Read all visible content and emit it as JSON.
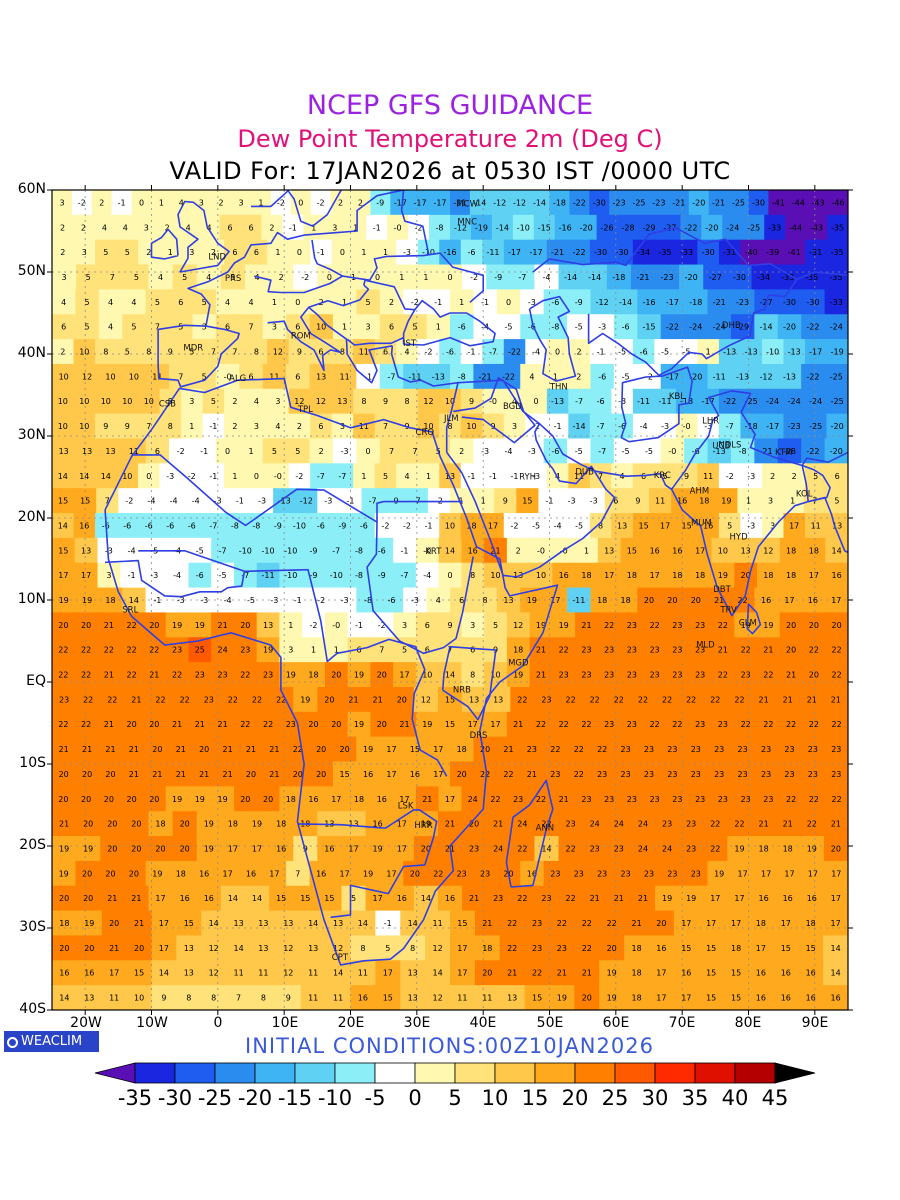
{
  "header": {
    "title": "NCEP GFS GUIDANCE",
    "subtitle": "Dew Point Temperature 2m (Deg C)",
    "valid": "VALID For: 17JAN2026 at 0530 IST /0000 UTC"
  },
  "axes": {
    "lat_labels": [
      "60N",
      "50N",
      "40N",
      "30N",
      "20N",
      "10N",
      "EQ",
      "10S",
      "20S",
      "30S",
      "40S"
    ],
    "lon_labels": [
      "20W",
      "10W",
      "0",
      "10E",
      "20E",
      "30E",
      "40E",
      "50E",
      "60E",
      "70E",
      "80E",
      "90E"
    ]
  },
  "footer": {
    "logo_text": "WEACLIM",
    "initial_conditions": "INITIAL CONDITIONS:00Z10JAN2026"
  },
  "colorbar": {
    "labels": [
      "-35",
      "-30",
      "-25",
      "-20",
      "-15",
      "-10",
      "-5",
      "0",
      "5",
      "10",
      "15",
      "20",
      "25",
      "30",
      "35",
      "40",
      "45"
    ],
    "colors": [
      "#5a0fb4",
      "#1a26e0",
      "#1e5df0",
      "#2b8cf0",
      "#3fb4f4",
      "#5fd2f4",
      "#8ceff8",
      "#ffffff",
      "#fff8b0",
      "#ffe27a",
      "#ffc84a",
      "#ffaa1e",
      "#ff8000",
      "#ff5a00",
      "#ff2a00",
      "#e01000",
      "#b40000",
      "#8c0000",
      "#000000"
    ]
  },
  "stations": [
    "LND",
    "PRS",
    "MNC",
    "MDR",
    "ROM",
    "IST",
    "ALG",
    "CSB",
    "TPL",
    "KRT",
    "CRO",
    "JLM",
    "BGD",
    "THN",
    "DHB",
    "KBL",
    "LHR",
    "NDLS",
    "KTM",
    "UCB",
    "RYH",
    "DUB",
    "KRC",
    "AHM",
    "KOL",
    "MUM",
    "HYD",
    "DBT",
    "TRV",
    "CLM",
    "MLD",
    "SRL",
    "MGD",
    "NRB",
    "DRS",
    "ANN",
    "HRR",
    "LSK",
    "CPT",
    "MCW"
  ],
  "map_data": {
    "region": "Europe, Africa, Middle East and South Asia",
    "lat_range": [
      -40,
      60
    ],
    "lon_range": [
      -25,
      95
    ],
    "variable": "Dew Point Temperature 2m (Deg C)",
    "station_grid_rows": [
      [
        "3",
        "-2",
        "2",
        "-1",
        "0",
        "1",
        "4",
        "3",
        "2",
        "3",
        "1",
        "-2",
        "0",
        "-2",
        "2",
        "2",
        "-9",
        "-17",
        "-17",
        "-17",
        "-21",
        "-14",
        "-12",
        "-12",
        "-14",
        "-18",
        "-22",
        "-30",
        "-23",
        "-25",
        "-23",
        "-21",
        "-20",
        "-21",
        "-25",
        "-30",
        "-41",
        "-44",
        "-43",
        "-46"
      ],
      [
        "2",
        "2",
        "4",
        "4",
        "3",
        "2",
        "4",
        "4",
        "6",
        "6",
        "2",
        "-1",
        "1",
        "3",
        "1",
        "-1",
        "-0",
        "-2",
        "-8",
        "-12",
        "-19",
        "-14",
        "-10",
        "-15",
        "-16",
        "-20",
        "-26",
        "-28",
        "-29",
        "-27",
        "-22",
        "-20",
        "-24",
        "-25",
        "-33",
        "-44",
        "-43",
        "-35"
      ],
      [
        "2",
        "3",
        "5",
        "5",
        "2",
        "1",
        "3",
        "2",
        "6",
        "6",
        "1",
        "0",
        "-1",
        "0",
        "1",
        "1",
        "-3",
        "-10",
        "-16",
        "-6",
        "-11",
        "-17",
        "-17",
        "-21",
        "-22",
        "-30",
        "-30",
        "-34",
        "-35",
        "-33",
        "-30",
        "-31",
        "-40",
        "-39",
        "-41",
        "-31",
        "-35"
      ],
      [
        "3",
        "5",
        "7",
        "5",
        "4",
        "5",
        "4",
        "5",
        "4",
        "2",
        "-2",
        "0",
        "1",
        "0",
        "1",
        "1",
        "0",
        "-2",
        "-9",
        "-7",
        "-4",
        "-14",
        "-14",
        "-18",
        "-21",
        "-23",
        "-20",
        "-27",
        "-30",
        "-34",
        "-33",
        "-35",
        "-35"
      ],
      [
        "4",
        "5",
        "4",
        "4",
        "5",
        "6",
        "5",
        "4",
        "4",
        "1",
        "0",
        "2",
        "1",
        "5",
        "2",
        "-2",
        "-1",
        "1",
        "-1",
        "0",
        "-3",
        "-6",
        "-9",
        "-12",
        "-14",
        "-16",
        "-17",
        "-18",
        "-21",
        "-23",
        "-27",
        "-30",
        "-30",
        "-33"
      ],
      [
        "6",
        "5",
        "4",
        "5",
        "7",
        "5",
        "3",
        "6",
        "7",
        "3",
        "6",
        "10",
        "1",
        "3",
        "6",
        "5",
        "1",
        "-6",
        "-4",
        "-5",
        "-6",
        "-8",
        "-5",
        "-3",
        "-6",
        "-15",
        "-22",
        "-24",
        "-24",
        "-29",
        "-14",
        "-20",
        "-22",
        "-24"
      ],
      [
        "2",
        "10",
        "8",
        "5",
        "8",
        "9",
        "5",
        "7",
        "7",
        "8",
        "12",
        "9",
        "6",
        "8",
        "11",
        "6",
        "4",
        "-2",
        "-6",
        "-1",
        "-7",
        "-22",
        "-4",
        "0",
        "2",
        "-1",
        "-5",
        "-6",
        "-5",
        "-5",
        "1",
        "-13",
        "-13",
        "-10",
        "-13",
        "-17",
        "-19"
      ],
      [
        "10",
        "12",
        "10",
        "10",
        "11",
        "7",
        "5",
        "-0",
        "6",
        "11",
        "6",
        "13",
        "11",
        "-1",
        "-7",
        "-11",
        "-13",
        "-8",
        "-21",
        "-22",
        "4",
        "1",
        "2",
        "-6",
        "-5",
        "-2",
        "-17",
        "-20",
        "-11",
        "-13",
        "-12",
        "-13",
        "-22",
        "-25"
      ],
      [
        "10",
        "10",
        "10",
        "10",
        "10",
        "8",
        "3",
        "5",
        "2",
        "4",
        "3",
        "12",
        "12",
        "13",
        "8",
        "9",
        "8",
        "12",
        "10",
        "9",
        "-0",
        "4",
        "0",
        "-13",
        "-7",
        "-6",
        "-3",
        "-11",
        "-11",
        "-18",
        "-17",
        "-22",
        "-25",
        "-24",
        "-24",
        "-24",
        "-25"
      ],
      [
        "10",
        "10",
        "9",
        "9",
        "7",
        "8",
        "1",
        "-1",
        "2",
        "3",
        "4",
        "2",
        "6",
        "3",
        "11",
        "7",
        "9",
        "10",
        "8",
        "10",
        "9",
        "3",
        "-2",
        "-1",
        "-14",
        "-7",
        "-6",
        "-4",
        "-3",
        "-0",
        "-3",
        "-7",
        "-18",
        "-17",
        "-23",
        "-25",
        "-20"
      ],
      [
        "13",
        "13",
        "13",
        "11",
        "6",
        "-2",
        "-1",
        "0",
        "1",
        "5",
        "5",
        "2",
        "-3",
        "0",
        "7",
        "7",
        "5",
        "2",
        "-3",
        "-4",
        "-3",
        "-6",
        "-5",
        "-7",
        "-5",
        "-5",
        "-0",
        "-6",
        "-13",
        "-8",
        "-21",
        "-28",
        "-22",
        "-20"
      ],
      [
        "14",
        "14",
        "14",
        "10",
        "0",
        "-3",
        "-2",
        "-1",
        "1",
        "0",
        "-0",
        "-2",
        "-7",
        "-7",
        "1",
        "5",
        "4",
        "1",
        "13",
        "-1",
        "-1",
        "-1",
        "-3",
        "4",
        "11",
        "7",
        "4",
        "6",
        "5",
        "9",
        "11",
        "-2",
        "-3",
        "2",
        "2",
        "5",
        "6"
      ],
      [
        "15",
        "15",
        "7",
        "-2",
        "-4",
        "-4",
        "-4",
        "-3",
        "-1",
        "-3",
        "-13",
        "-12",
        "-3",
        "-1",
        "-7",
        "-9",
        "-7",
        "-2",
        "1",
        "1",
        "9",
        "15",
        "-1",
        "-3",
        "-3",
        "6",
        "9",
        "11",
        "16",
        "18",
        "19",
        "1",
        "3",
        "1",
        "7",
        "5"
      ],
      [
        "14",
        "16",
        "-6",
        "-6",
        "-6",
        "-6",
        "-6",
        "-7",
        "-8",
        "-8",
        "-9",
        "-10",
        "-6",
        "-9",
        "-6",
        "-2",
        "-2",
        "-1",
        "10",
        "18",
        "17",
        "-2",
        "-5",
        "-4",
        "-5",
        "8",
        "13",
        "15",
        "17",
        "15",
        "16",
        "5",
        "-3",
        "3",
        "17",
        "11",
        "13"
      ],
      [
        "15",
        "13",
        "-3",
        "-4",
        "-5",
        "-4",
        "-5",
        "-7",
        "-10",
        "-10",
        "-10",
        "-9",
        "-7",
        "-8",
        "-6",
        "-1",
        "-0",
        "14",
        "16",
        "21",
        "2",
        "-0",
        "-0",
        "1",
        "13",
        "15",
        "16",
        "16",
        "17",
        "10",
        "13",
        "12",
        "18",
        "18",
        "14"
      ],
      [
        "17",
        "17",
        "3",
        "-1",
        "-3",
        "-4",
        "-6",
        "-5",
        "-7",
        "-11",
        "-10",
        "-9",
        "-10",
        "-8",
        "-9",
        "-7",
        "-4",
        "0",
        "8",
        "10",
        "13",
        "10",
        "16",
        "18",
        "17",
        "18",
        "17",
        "18",
        "18",
        "19",
        "20",
        "18",
        "18",
        "17",
        "16"
      ],
      [
        "19",
        "19",
        "18",
        "14",
        "-1",
        "-3",
        "-3",
        "-4",
        "-5",
        "-3",
        "-1",
        "-2",
        "-3",
        "-8",
        "-6",
        "-3",
        "4",
        "6",
        "8",
        "13",
        "19",
        "17",
        "-11",
        "18",
        "18",
        "20",
        "20",
        "20",
        "21",
        "22",
        "16",
        "17",
        "16",
        "17"
      ],
      [
        "20",
        "20",
        "21",
        "22",
        "20",
        "19",
        "19",
        "21",
        "20",
        "13",
        "1",
        "-2",
        "-0",
        "-1",
        "-2",
        "3",
        "6",
        "9",
        "3",
        "5",
        "12",
        "19",
        "19",
        "21",
        "22",
        "23",
        "22",
        "23",
        "23",
        "22",
        "19",
        "19",
        "20",
        "20",
        "20"
      ],
      [
        "22",
        "22",
        "22",
        "22",
        "22",
        "23",
        "25",
        "24",
        "23",
        "19",
        "3",
        "1",
        "1",
        "6",
        "7",
        "5",
        "6",
        "7",
        "6",
        "9",
        "18",
        "21",
        "22",
        "23",
        "23",
        "23",
        "23",
        "23",
        "23",
        "21",
        "22",
        "21",
        "20",
        "22",
        "22"
      ],
      [
        "22",
        "22",
        "21",
        "22",
        "21",
        "22",
        "23",
        "23",
        "22",
        "23",
        "19",
        "18",
        "20",
        "19",
        "20",
        "17",
        "10",
        "14",
        "8",
        "10",
        "19",
        "21",
        "23",
        "23",
        "23",
        "23",
        "23",
        "23",
        "23",
        "22",
        "23",
        "22",
        "21",
        "20",
        "22"
      ],
      [
        "23",
        "22",
        "22",
        "21",
        "22",
        "22",
        "23",
        "22",
        "22",
        "22",
        "19",
        "20",
        "21",
        "21",
        "20",
        "12",
        "15",
        "13",
        "13",
        "22",
        "23",
        "22",
        "22",
        "22",
        "22",
        "22",
        "22",
        "22",
        "22",
        "21",
        "21",
        "21",
        "21"
      ],
      [
        "22",
        "22",
        "21",
        "20",
        "20",
        "21",
        "21",
        "21",
        "22",
        "22",
        "23",
        "20",
        "20",
        "19",
        "20",
        "21",
        "19",
        "15",
        "17",
        "17",
        "21",
        "22",
        "22",
        "22",
        "23",
        "23",
        "22",
        "22",
        "23",
        "23",
        "22",
        "22",
        "22",
        "22",
        "22"
      ],
      [
        "21",
        "21",
        "21",
        "21",
        "20",
        "21",
        "20",
        "21",
        "21",
        "21",
        "22",
        "20",
        "20",
        "19",
        "17",
        "15",
        "17",
        "18",
        "20",
        "21",
        "23",
        "22",
        "22",
        "22",
        "23",
        "23",
        "23",
        "23",
        "23",
        "23",
        "23",
        "23",
        "23",
        "23"
      ],
      [
        "20",
        "20",
        "20",
        "21",
        "21",
        "21",
        "21",
        "21",
        "20",
        "21",
        "20",
        "20",
        "15",
        "16",
        "17",
        "16",
        "17",
        "20",
        "22",
        "22",
        "21",
        "23",
        "22",
        "23",
        "23",
        "23",
        "23",
        "23",
        "23",
        "23",
        "23",
        "23",
        "23",
        "23"
      ],
      [
        "20",
        "20",
        "20",
        "20",
        "20",
        "19",
        "19",
        "19",
        "20",
        "20",
        "18",
        "16",
        "17",
        "18",
        "16",
        "17",
        "21",
        "17",
        "24",
        "22",
        "23",
        "22",
        "21",
        "23",
        "23",
        "23",
        "23",
        "23",
        "23",
        "23",
        "23",
        "23",
        "22",
        "22",
        "22"
      ],
      [
        "21",
        "20",
        "20",
        "20",
        "18",
        "20",
        "19",
        "18",
        "19",
        "18",
        "18",
        "13",
        "13",
        "16",
        "17",
        "19",
        "21",
        "20",
        "21",
        "24",
        "22",
        "23",
        "24",
        "24",
        "24",
        "23",
        "23",
        "22",
        "22",
        "21",
        "21",
        "22",
        "21"
      ],
      [
        "19",
        "19",
        "20",
        "20",
        "20",
        "20",
        "19",
        "17",
        "17",
        "16",
        "9",
        "16",
        "17",
        "19",
        "17",
        "20",
        "21",
        "23",
        "24",
        "22",
        "14",
        "22",
        "23",
        "23",
        "24",
        "24",
        "23",
        "22",
        "19",
        "18",
        "18",
        "19",
        "20"
      ],
      [
        "19",
        "20",
        "20",
        "20",
        "19",
        "18",
        "16",
        "17",
        "16",
        "17",
        "7",
        "16",
        "17",
        "19",
        "17",
        "20",
        "22",
        "23",
        "23",
        "20",
        "16",
        "23",
        "23",
        "23",
        "23",
        "23",
        "23",
        "23",
        "19",
        "17",
        "17",
        "17",
        "17",
        "17"
      ],
      [
        "20",
        "20",
        "21",
        "21",
        "17",
        "16",
        "16",
        "14",
        "14",
        "15",
        "15",
        "15",
        "5",
        "17",
        "16",
        "14",
        "16",
        "21",
        "23",
        "22",
        "23",
        "22",
        "21",
        "21",
        "21",
        "19",
        "19",
        "17",
        "17",
        "16",
        "16",
        "16",
        "17"
      ],
      [
        "18",
        "19",
        "20",
        "21",
        "17",
        "15",
        "14",
        "13",
        "13",
        "13",
        "14",
        "13",
        "14",
        "-1",
        "14",
        "11",
        "15",
        "21",
        "22",
        "23",
        "22",
        "22",
        "22",
        "21",
        "20",
        "17",
        "17",
        "17",
        "18",
        "17",
        "18",
        "17"
      ],
      [
        "20",
        "20",
        "21",
        "20",
        "17",
        "13",
        "12",
        "14",
        "13",
        "12",
        "13",
        "12",
        "8",
        "5",
        "8",
        "12",
        "17",
        "18",
        "22",
        "23",
        "23",
        "22",
        "20",
        "18",
        "16",
        "15",
        "15",
        "18",
        "17",
        "15",
        "15",
        "14"
      ],
      [
        "16",
        "16",
        "17",
        "15",
        "14",
        "13",
        "12",
        "11",
        "11",
        "12",
        "11",
        "14",
        "11",
        "17",
        "13",
        "14",
        "17",
        "20",
        "21",
        "22",
        "21",
        "21",
        "19",
        "18",
        "17",
        "16",
        "15",
        "15",
        "16",
        "16",
        "16",
        "14"
      ],
      [
        "14",
        "13",
        "11",
        "10",
        "9",
        "8",
        "8",
        "7",
        "8",
        "9",
        "11",
        "11",
        "16",
        "15",
        "13",
        "12",
        "11",
        "11",
        "13",
        "15",
        "19",
        "20",
        "19",
        "18",
        "17",
        "17",
        "15",
        "15",
        "16",
        "16",
        "16",
        "16"
      ]
    ]
  }
}
